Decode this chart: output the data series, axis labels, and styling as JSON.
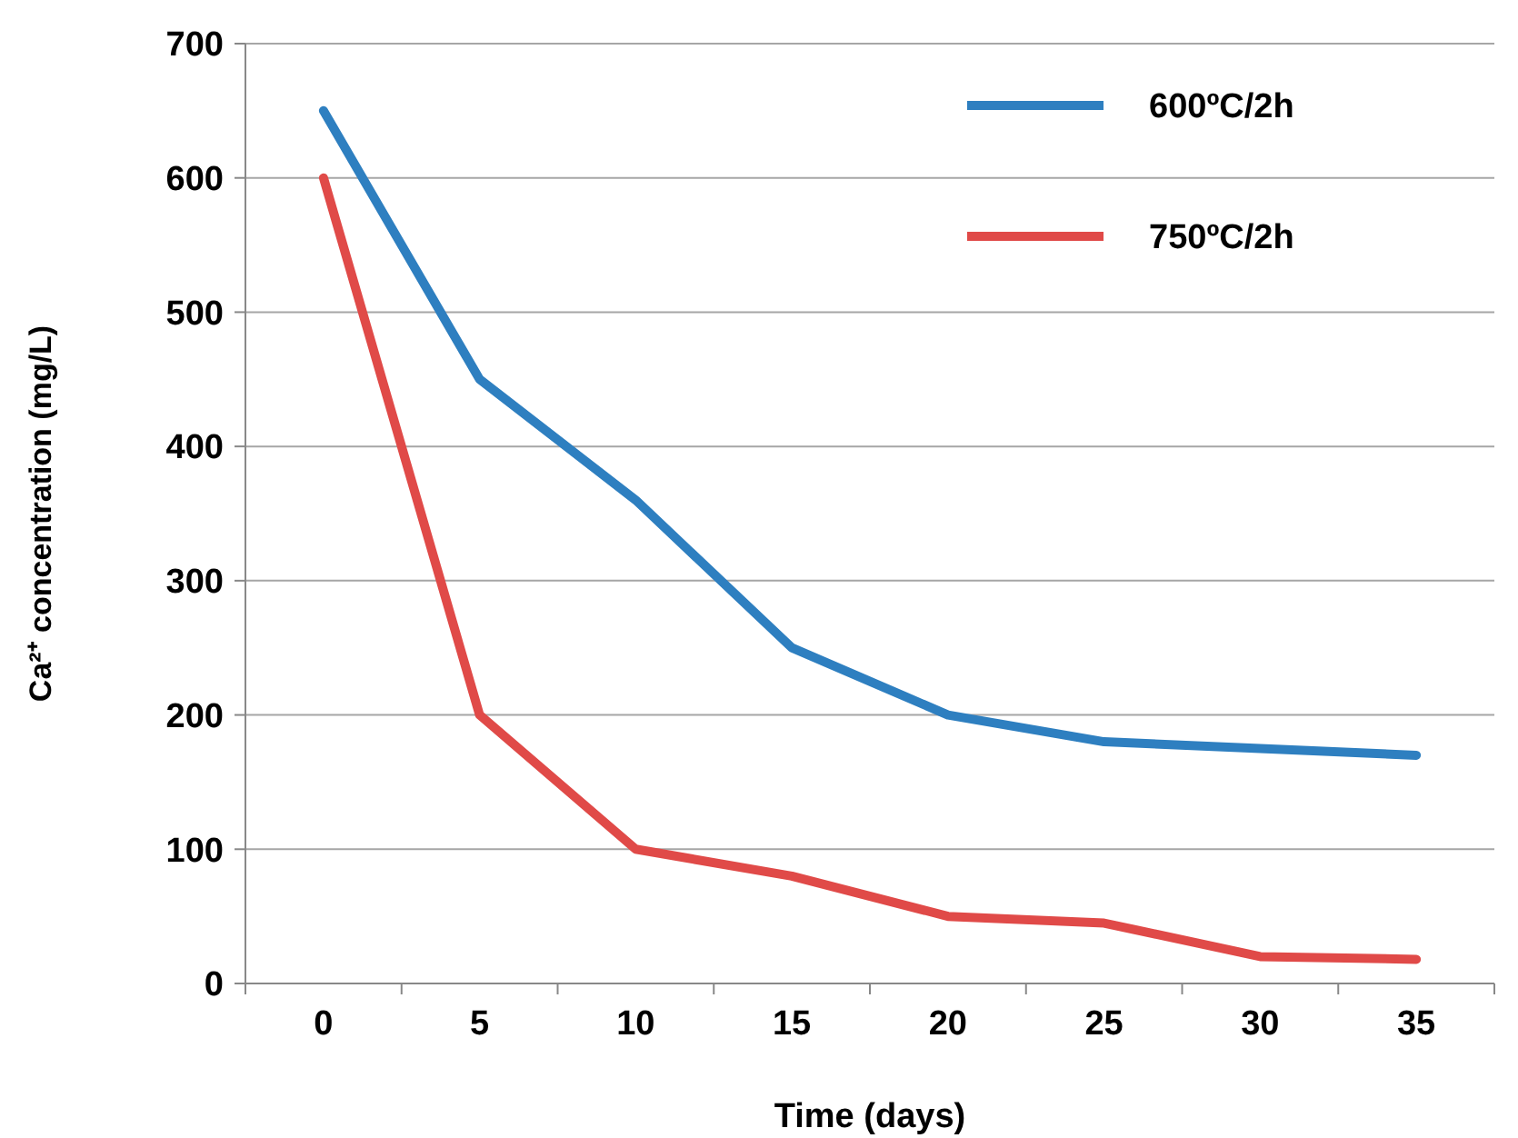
{
  "chart_data": {
    "type": "line",
    "xlabel": "Time (days)",
    "ylabel": "Ca²⁺ concentration (mg/L)",
    "categories": [
      "0",
      "5",
      "10",
      "15",
      "20",
      "25",
      "30",
      "35"
    ],
    "series": [
      {
        "name": "600ºC/2h",
        "color": "#2e7fc0",
        "values": [
          650,
          450,
          360,
          250,
          200,
          180,
          175,
          170
        ]
      },
      {
        "name": "750ºC/2h",
        "color": "#e04a48",
        "values": [
          600,
          200,
          100,
          80,
          50,
          45,
          20,
          18
        ]
      }
    ],
    "ylim": [
      0,
      700
    ],
    "yticks": [
      0,
      100,
      200,
      300,
      400,
      500,
      600,
      700
    ],
    "grid": "y",
    "legend": "top right",
    "marker": "none",
    "line_style": "solid"
  }
}
